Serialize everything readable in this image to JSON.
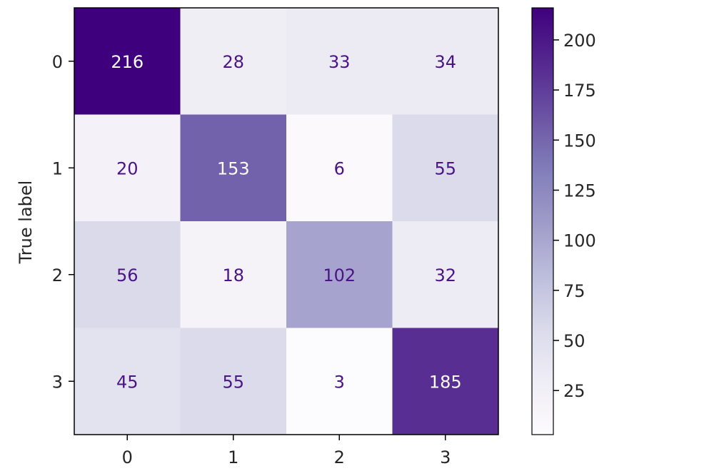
{
  "chart_data": {
    "type": "heatmap",
    "title": "",
    "xlabel": "",
    "ylabel": "True label",
    "x_categories": [
      "0",
      "1",
      "2",
      "3"
    ],
    "y_categories": [
      "0",
      "1",
      "2",
      "3"
    ],
    "matrix": [
      [
        216,
        28,
        33,
        34
      ],
      [
        20,
        153,
        6,
        55
      ],
      [
        56,
        18,
        102,
        32
      ],
      [
        45,
        55,
        3,
        185
      ]
    ],
    "colormap": "Purples",
    "colorbar": {
      "range": [
        3,
        216
      ],
      "ticks": [
        25,
        50,
        75,
        100,
        125,
        150,
        175,
        200
      ]
    },
    "colors": {
      "low": "#fcfbfd",
      "high": "#3f007d",
      "text_on_light": "#4a1486",
      "text_on_dark": "#ffffff"
    }
  }
}
